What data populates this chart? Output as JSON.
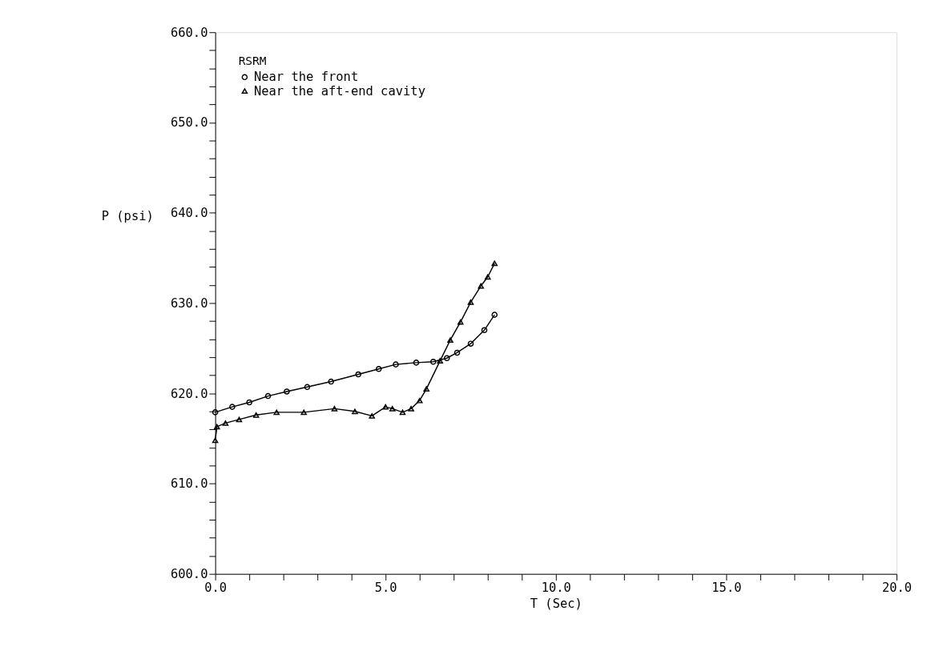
{
  "chart_data": {
    "type": "line",
    "xlabel": "T (Sec)",
    "ylabel": "P (psi)",
    "legend_title": "RSRM",
    "legend": "top left",
    "grid": false,
    "xlim": [
      0,
      20
    ],
    "ylim": [
      600,
      660
    ],
    "xticks": [
      {
        "value": 0,
        "label": "0.0"
      },
      {
        "value": 1,
        "label": null
      },
      {
        "value": 2,
        "label": null
      },
      {
        "value": 3,
        "label": null
      },
      {
        "value": 4,
        "label": null
      },
      {
        "value": 5,
        "label": "5.0"
      },
      {
        "value": 6,
        "label": null
      },
      {
        "value": 7,
        "label": null
      },
      {
        "value": 8,
        "label": null
      },
      {
        "value": 9,
        "label": null
      },
      {
        "value": 10,
        "label": "10.0"
      },
      {
        "value": 11,
        "label": null
      },
      {
        "value": 12,
        "label": null
      },
      {
        "value": 13,
        "label": null
      },
      {
        "value": 14,
        "label": null
      },
      {
        "value": 15,
        "label": "15.0"
      },
      {
        "value": 16,
        "label": null
      },
      {
        "value": 17,
        "label": null
      },
      {
        "value": 18,
        "label": null
      },
      {
        "value": 19,
        "label": null
      },
      {
        "value": 20,
        "label": "20.0"
      }
    ],
    "yticks": [
      {
        "value": 600,
        "label": "600.0"
      },
      {
        "value": 602,
        "label": null
      },
      {
        "value": 604,
        "label": null
      },
      {
        "value": 606,
        "label": null
      },
      {
        "value": 608,
        "label": null
      },
      {
        "value": 610,
        "label": "610.0"
      },
      {
        "value": 612,
        "label": null
      },
      {
        "value": 614,
        "label": null
      },
      {
        "value": 616,
        "label": null
      },
      {
        "value": 618,
        "label": null
      },
      {
        "value": 620,
        "label": "620.0"
      },
      {
        "value": 622,
        "label": null
      },
      {
        "value": 624,
        "label": null
      },
      {
        "value": 626,
        "label": null
      },
      {
        "value": 628,
        "label": null
      },
      {
        "value": 630,
        "label": "630.0"
      },
      {
        "value": 632,
        "label": null
      },
      {
        "value": 634,
        "label": null
      },
      {
        "value": 636,
        "label": null
      },
      {
        "value": 638,
        "label": null
      },
      {
        "value": 640,
        "label": "640.0"
      },
      {
        "value": 642,
        "label": null
      },
      {
        "value": 644,
        "label": null
      },
      {
        "value": 646,
        "label": null
      },
      {
        "value": 648,
        "label": null
      },
      {
        "value": 650,
        "label": "650.0"
      },
      {
        "value": 652,
        "label": null
      },
      {
        "value": 654,
        "label": null
      },
      {
        "value": 656,
        "label": null
      },
      {
        "value": 658,
        "label": null
      },
      {
        "value": 660,
        "label": "660.0"
      }
    ],
    "series": [
      {
        "name": "Near the front",
        "color": "#000000",
        "marker": "circle",
        "x": [
          0,
          0.5,
          1.0,
          1.55,
          2.1,
          2.7,
          3.4,
          4.2,
          4.8,
          5.3,
          5.9,
          6.4,
          6.8,
          7.1,
          7.5,
          7.9,
          8.2
        ],
        "values": [
          617.9,
          618.5,
          619.0,
          619.7,
          620.2,
          620.7,
          621.3,
          622.1,
          622.7,
          623.2,
          623.4,
          623.5,
          623.9,
          624.5,
          625.5,
          627.0,
          628.7
        ]
      },
      {
        "name": "Near the aft-end cavity",
        "color": "#000000",
        "marker": "triangle",
        "x": [
          0,
          0.05,
          0.3,
          0.7,
          1.2,
          1.8,
          2.6,
          3.5,
          4.1,
          4.6,
          5.0,
          5.2,
          5.5,
          5.75,
          6.0,
          6.2,
          6.6,
          6.9,
          7.2,
          7.5,
          7.8,
          8.0,
          8.2
        ],
        "values": [
          614.8,
          616.3,
          616.7,
          617.1,
          617.6,
          617.9,
          617.9,
          618.3,
          618.0,
          617.5,
          618.5,
          618.3,
          617.9,
          618.3,
          619.2,
          620.5,
          623.6,
          625.9,
          627.9,
          630.1,
          631.9,
          632.9,
          634.4
        ]
      }
    ]
  }
}
